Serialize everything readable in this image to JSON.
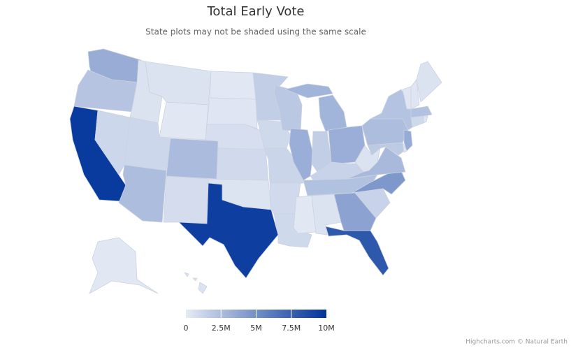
{
  "chart_data": {
    "type": "map",
    "title": "Total Early Vote",
    "subtitle": "State plots may not be shaded using the same scale",
    "values": [
      3400000,
      2100000,
      9600000,
      1100000,
      500000,
      500000,
      200000,
      1100000,
      2500000,
      2600000,
      800000,
      200000,
      300000,
      700000,
      900000,
      400000,
      9400000,
      1600000,
      1000000,
      1200000,
      900000,
      1000000,
      1900000,
      3300000,
      3000000,
      1600000,
      3300000,
      1300000,
      2300000,
      200000,
      500000,
      3900000,
      8000000,
      4500000,
      1300000,
      2700000,
      500000,
      2500000,
      2200000,
      3500000,
      1800000,
      300000,
      1000000,
      300000,
      2300000,
      300000,
      300000,
      500000,
      200000,
      500000
    ],
    "color_axis": {
      "min_color": "#e6ebf5",
      "max_color": "#003399",
      "lim": [
        0,
        10000000
      ],
      "ticks": [
        0,
        {
          "value": 2500000,
          "label": "2.5M"
        },
        {
          "value": 5000000,
          "label": "5M"
        },
        {
          "value": 7500000,
          "label": "7.5M"
        },
        {
          "value": 10000000,
          "label": "10M"
        }
      ]
    },
    "credits": "Highcharts.com © Natural Earth"
  }
}
